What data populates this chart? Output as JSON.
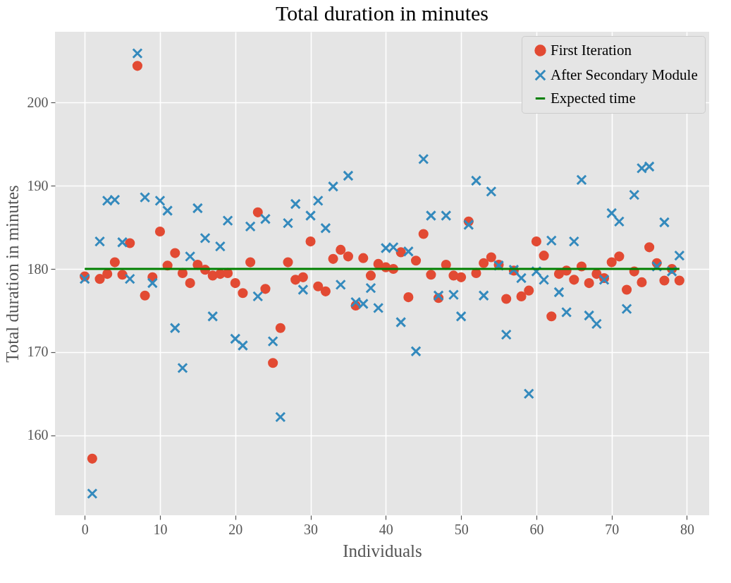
{
  "chart_data": {
    "type": "scatter",
    "title": "Total duration in minutes",
    "xlabel": "Individuals",
    "ylabel": "Total duration in minutes",
    "x": [
      0,
      1,
      2,
      3,
      4,
      5,
      6,
      7,
      8,
      9,
      10,
      11,
      12,
      13,
      14,
      15,
      16,
      17,
      18,
      19,
      20,
      21,
      22,
      23,
      24,
      25,
      26,
      27,
      28,
      29,
      30,
      31,
      32,
      33,
      34,
      35,
      36,
      37,
      38,
      39,
      40,
      41,
      42,
      43,
      44,
      45,
      46,
      47,
      48,
      49,
      50,
      51,
      52,
      53,
      54,
      55,
      56,
      57,
      58,
      59,
      60,
      61,
      62,
      63,
      64,
      65,
      66,
      67,
      68,
      69,
      70,
      71,
      72,
      73,
      74,
      75,
      76,
      77,
      78,
      79
    ],
    "series": [
      {
        "name": "First Iteration",
        "color": "#e24a33",
        "marker": "circle",
        "values": [
          179.1,
          157.2,
          178.8,
          179.4,
          180.8,
          179.3,
          183.1,
          204.4,
          176.8,
          179.0,
          184.5,
          180.4,
          181.9,
          179.5,
          178.3,
          180.5,
          179.9,
          179.2,
          179.4,
          179.5,
          178.3,
          177.1,
          180.8,
          186.8,
          177.6,
          168.7,
          172.9,
          180.8,
          178.7,
          179.0,
          183.3,
          177.9,
          177.3,
          181.2,
          182.3,
          181.5,
          175.6,
          181.3,
          179.2,
          180.6,
          180.2,
          180.0,
          182.0,
          176.6,
          181.0,
          184.2,
          179.3,
          176.5,
          180.5,
          179.2,
          179.0,
          185.7,
          179.5,
          180.7,
          181.4,
          180.5,
          176.4,
          179.8,
          176.7,
          177.4,
          183.3,
          181.6,
          174.3,
          179.4,
          179.8,
          178.7,
          180.3,
          178.3,
          179.4,
          178.9,
          180.8,
          181.5,
          177.5,
          179.7,
          178.4,
          182.6,
          180.7,
          178.6,
          180.0,
          178.6
        ]
      },
      {
        "name": "After Secondary Module",
        "color": "#348abd",
        "marker": "cross",
        "values": [
          178.8,
          153.0,
          183.3,
          188.2,
          188.3,
          183.2,
          178.8,
          205.9,
          188.6,
          178.3,
          188.2,
          187.0,
          172.9,
          168.1,
          181.5,
          187.3,
          183.7,
          174.3,
          182.7,
          185.8,
          171.6,
          170.8,
          185.1,
          176.7,
          186.0,
          171.3,
          162.2,
          185.5,
          187.8,
          177.5,
          186.4,
          188.2,
          184.9,
          189.9,
          178.1,
          191.2,
          176.0,
          175.8,
          177.7,
          175.3,
          182.5,
          182.6,
          173.6,
          182.1,
          170.1,
          193.2,
          186.4,
          176.8,
          186.4,
          176.9,
          174.3,
          185.3,
          190.6,
          176.8,
          189.3,
          180.4,
          172.1,
          179.9,
          178.9,
          165.0,
          179.7,
          178.7,
          183.4,
          177.2,
          174.8,
          183.3,
          190.7,
          174.4,
          173.4,
          178.7,
          186.7,
          185.7,
          175.2,
          188.9,
          192.1,
          192.3,
          180.3,
          185.6,
          179.7,
          181.6
        ]
      },
      {
        "name": "Expected time",
        "type": "line",
        "color": "#008000",
        "line_style": "solid",
        "x": [
          0,
          79
        ],
        "values": [
          180,
          180
        ]
      }
    ],
    "xlim": [
      -3.95,
      82.95
    ],
    "ylim": [
      150.4,
      208.5
    ],
    "xticks": [
      0,
      10,
      20,
      30,
      40,
      50,
      60,
      70,
      80
    ],
    "yticks": [
      160,
      170,
      180,
      190,
      200
    ],
    "grid": true,
    "legend": "top right"
  }
}
